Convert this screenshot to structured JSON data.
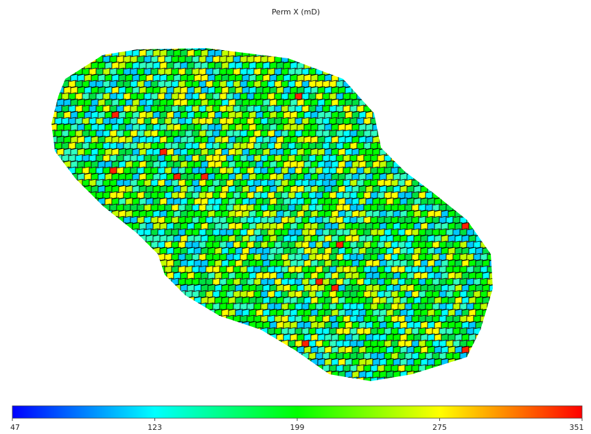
{
  "chart_data": {
    "type": "colorbar",
    "title": "Perm X (mD)",
    "xlim": [
      47,
      351
    ],
    "xticks": [
      47,
      123,
      199,
      275,
      351
    ],
    "colors": [
      "#0000ff",
      "#00ffff",
      "#00ff00",
      "#ffff00",
      "#ff0000"
    ]
  }
}
